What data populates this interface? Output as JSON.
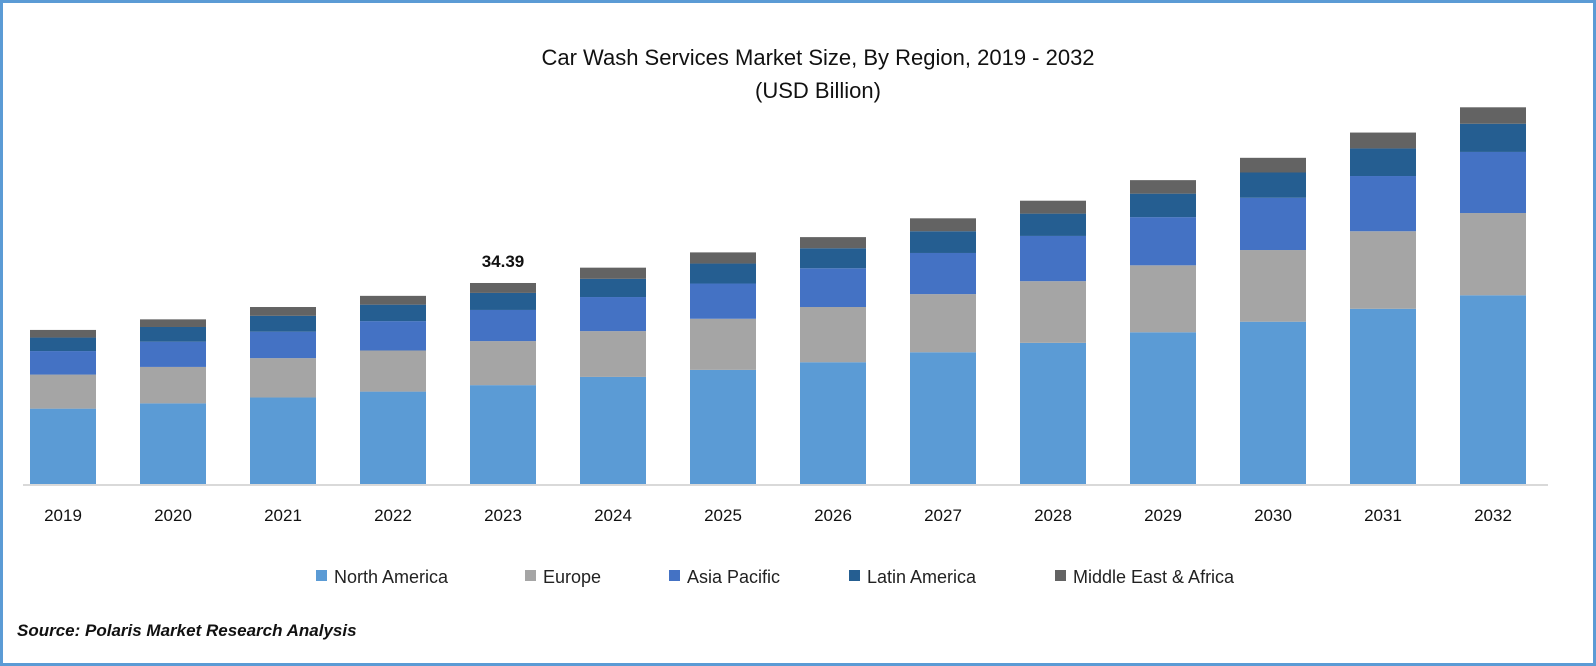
{
  "chart_data": {
    "type": "bar",
    "stacked": true,
    "title": "Car Wash Services Market Size, By Region, 2019 - 2032",
    "subtitle": "(USD Billion)",
    "xlabel": "",
    "ylabel": "",
    "ylim": [
      0,
      70
    ],
    "grid": false,
    "legend_position": "bottom",
    "categories": [
      "2019",
      "2020",
      "2021",
      "2022",
      "2023",
      "2024",
      "2025",
      "2026",
      "2027",
      "2028",
      "2029",
      "2030",
      "2031",
      "2032"
    ],
    "series": [
      {
        "name": "North America",
        "color": "#5b9bd5",
        "values": [
          13.0,
          13.9,
          14.9,
          15.9,
          17.0,
          18.4,
          19.6,
          20.9,
          22.6,
          24.2,
          26.0,
          27.8,
          30.0,
          32.3
        ]
      },
      {
        "name": "Europe",
        "color": "#a5a5a5",
        "values": [
          5.8,
          6.2,
          6.7,
          7.0,
          7.5,
          7.8,
          8.7,
          9.4,
          9.9,
          10.5,
          11.4,
          12.2,
          13.2,
          14.0
        ]
      },
      {
        "name": "Asia Pacific",
        "color": "#4472c4",
        "values": [
          4.0,
          4.3,
          4.5,
          5.0,
          5.3,
          5.8,
          6.0,
          6.6,
          7.0,
          7.7,
          8.2,
          8.9,
          9.4,
          10.4
        ]
      },
      {
        "name": "Latin America",
        "color": "#255e91",
        "values": [
          2.3,
          2.5,
          2.7,
          2.8,
          2.9,
          3.1,
          3.4,
          3.4,
          3.7,
          3.8,
          4.0,
          4.3,
          4.7,
          4.8
        ]
      },
      {
        "name": "Middle East & Africa",
        "color": "#636363",
        "values": [
          1.3,
          1.3,
          1.5,
          1.5,
          1.69,
          1.9,
          1.9,
          1.9,
          2.2,
          2.2,
          2.3,
          2.5,
          2.7,
          2.8
        ]
      }
    ],
    "annotations": [
      {
        "category": "2023",
        "text": "34.39"
      }
    ]
  },
  "source": "Source: Polaris Market Research Analysis"
}
